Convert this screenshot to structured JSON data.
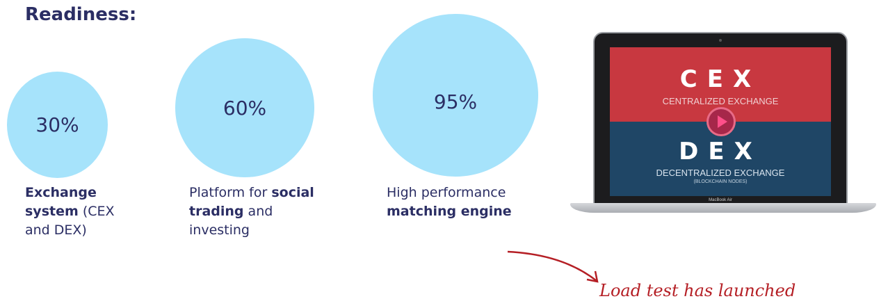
{
  "heading": "Readiness:",
  "items": [
    {
      "percent": "30%",
      "bold1": "Exchange system",
      "rest1": " (CEX and DEX)"
    },
    {
      "percent": "60%",
      "pre2": "Platform for ",
      "bold2": "social trading",
      "rest2": " and investing"
    },
    {
      "percent": "95%",
      "pre3": "High performance ",
      "bold3": "matching engine"
    }
  ],
  "screen": {
    "cex_title": "CEX",
    "cex_subtitle": "CENTRALIZED EXCHANGE",
    "dex_title": "DEX",
    "dex_subtitle": "DECENTRALIZED EXCHANGE",
    "dex_note": "(BLOCKCHAIN NODES)",
    "device_label": "MacBook Air"
  },
  "annotation": "Load test has launched",
  "colors": {
    "circle": "#a6e3fb",
    "text": "#2b2e64",
    "note": "#b51f25"
  }
}
